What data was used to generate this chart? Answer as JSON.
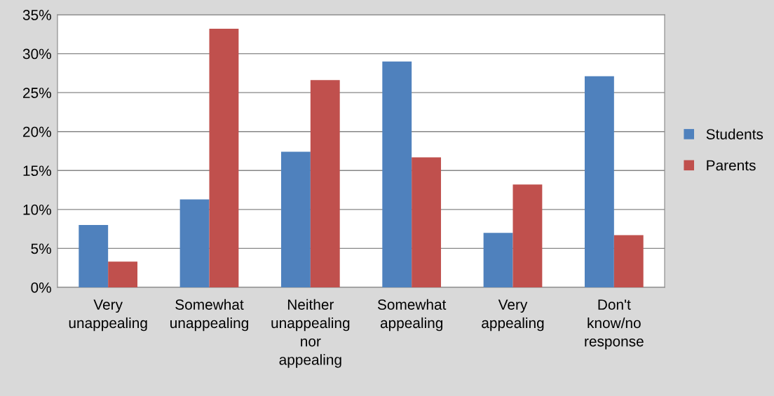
{
  "chart_data": {
    "type": "bar",
    "categories": [
      "Very unappealing",
      "Somewhat unappealing",
      "Neither unappealing nor appealing",
      "Somewhat appealing",
      "Very appealing",
      "Don't know/no response"
    ],
    "series": [
      {
        "name": "Students",
        "color": "#4f81bd",
        "values": [
          8.0,
          11.3,
          17.4,
          29.0,
          7.0,
          27.1
        ]
      },
      {
        "name": "Parents",
        "color": "#c0504d",
        "values": [
          3.3,
          33.2,
          26.6,
          16.7,
          13.2,
          6.7
        ]
      }
    ],
    "ylim": [
      0,
      35
    ],
    "yticks": [
      {
        "value": 0,
        "label": "0%"
      },
      {
        "value": 5,
        "label": "5%"
      },
      {
        "value": 10,
        "label": "10%"
      },
      {
        "value": 15,
        "label": "15%"
      },
      {
        "value": 20,
        "label": "20%"
      },
      {
        "value": 25,
        "label": "25%"
      },
      {
        "value": 30,
        "label": "30%"
      },
      {
        "value": 35,
        "label": "35%"
      }
    ],
    "grid": "y",
    "legend": "right"
  }
}
